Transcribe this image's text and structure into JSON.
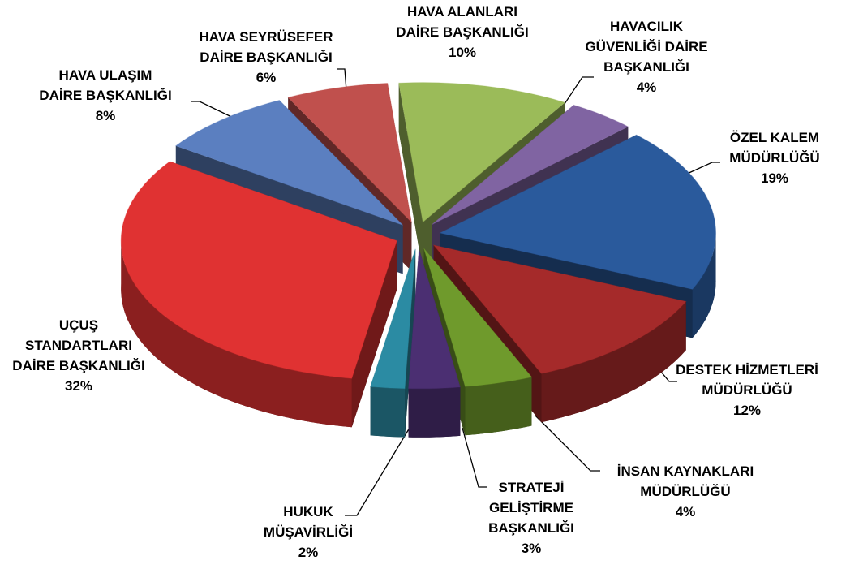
{
  "chart_data": {
    "type": "pie3d",
    "categories": [
      "HAVA ALANLARI\nDAİRE BAŞKANLIĞI",
      "HAVACILIK\nGÜVENLİĞİ DAİRE\nBAŞKANLIĞI",
      "ÖZEL KALEM\nMÜDÜRLÜĞÜ",
      "DESTEK HİZMETLERİ\nMÜDÜRLÜĞÜ",
      "İNSAN KAYNAKLARI\nMÜDÜRLÜĞÜ",
      "STRATEJİ\nGELİŞTİRME\nBAŞKANLIĞI",
      "HUKUK\nMÜŞAVİRLİĞİ",
      "UÇUŞ\nSTANDARTLARI\nDAİRE BAŞKANLIĞI",
      "HAVA ULAŞIM\nDAİRE BAŞKANLIĞI",
      "HAVA SEYRÜSEFER\nDAİRE BAŞKANLIĞI"
    ],
    "values": [
      10,
      4,
      19,
      12,
      4,
      3,
      2,
      32,
      8,
      6
    ],
    "value_labels": [
      "10%",
      "4%",
      "19%",
      "12%",
      "4%",
      "3%",
      "2%",
      "32%",
      "8%",
      "6%"
    ],
    "colors": [
      "#9bbb59",
      "#8064a2",
      "#2a5a9c",
      "#a52a2a",
      "#6f9a2c",
      "#4b2f72",
      "#2b8ba3",
      "#e03232",
      "#5b7fc0",
      "#c0504d"
    ]
  }
}
